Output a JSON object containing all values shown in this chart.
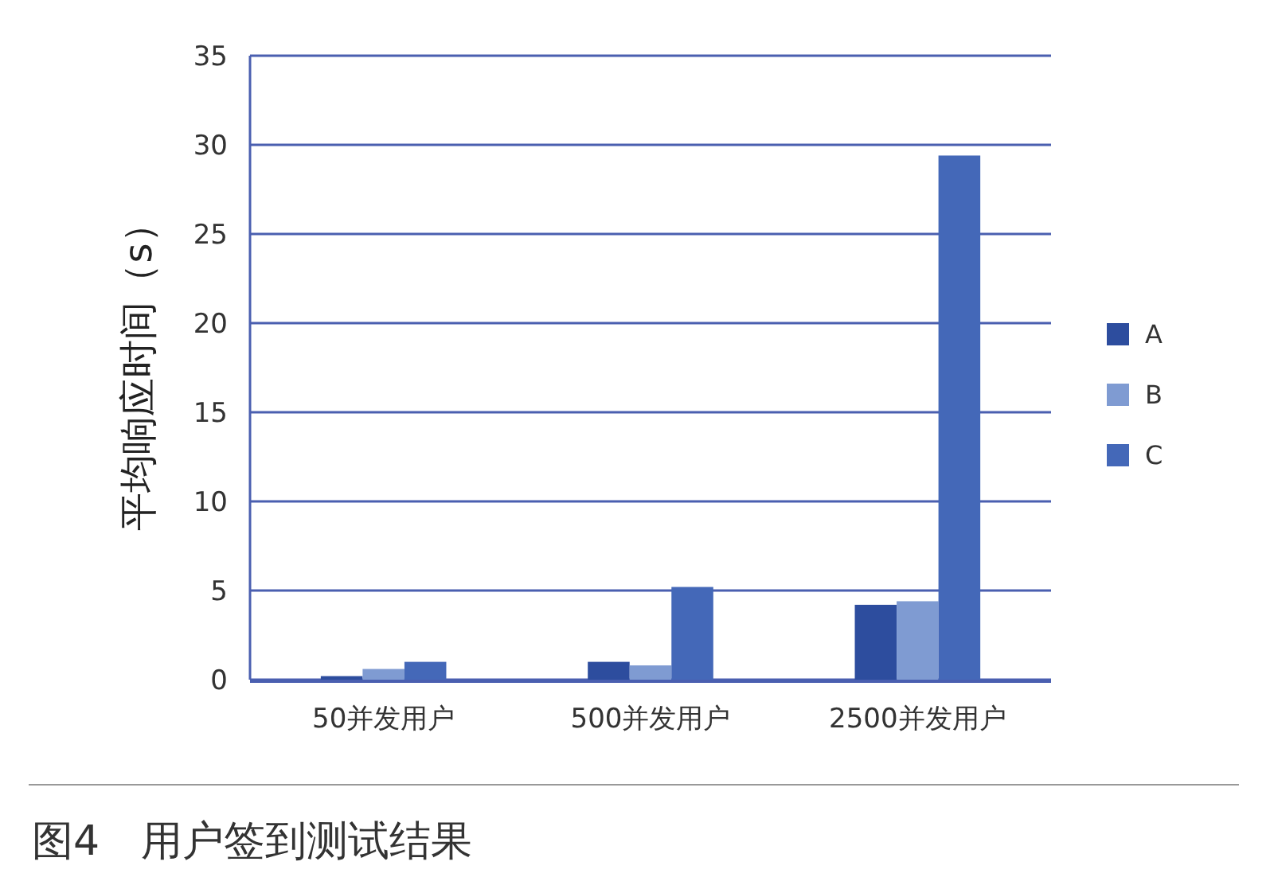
{
  "chart_data": {
    "type": "bar",
    "ylabel": "平均响应时间（s）",
    "categories": [
      "50并发用户",
      "500并发用户",
      "2500并发用户"
    ],
    "series": [
      {
        "name": "A",
        "color": "#2d4d9e",
        "values": [
          0.2,
          1.0,
          4.2
        ]
      },
      {
        "name": "B",
        "color": "#7f9bd2",
        "values": [
          0.6,
          0.8,
          4.4
        ]
      },
      {
        "name": "C",
        "color": "#4468b8",
        "values": [
          1.0,
          5.2,
          29.4
        ]
      }
    ],
    "ylim": [
      0,
      35
    ],
    "yticks": [
      0,
      5,
      10,
      15,
      20,
      25,
      30,
      35
    ],
    "grid": "y",
    "legend": "right",
    "annotations": [
      "图4　用户签到测试结果"
    ]
  }
}
